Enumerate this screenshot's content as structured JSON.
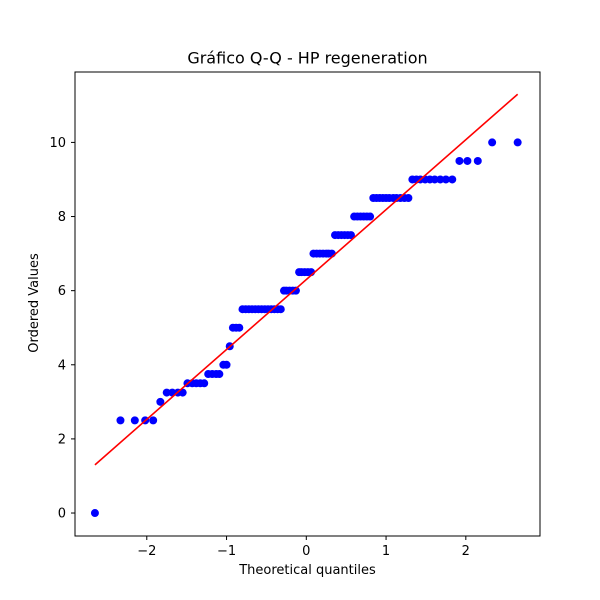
{
  "chart_data": {
    "type": "scatter",
    "title": "Gráfico Q-Q - HP regeneration",
    "xlabel": "Theoretical quantiles",
    "ylabel": "Ordered Values",
    "xlim": [
      -2.9,
      2.93
    ],
    "ylim": [
      -0.62,
      11.9
    ],
    "xticks": [
      -2,
      -1,
      0,
      1,
      2
    ],
    "xtick_labels": [
      "−2",
      "−1",
      "0",
      "1",
      "2"
    ],
    "yticks": [
      0,
      2,
      4,
      6,
      8,
      10
    ],
    "ytick_labels": [
      "0",
      "2",
      "4",
      "6",
      "8",
      "10"
    ],
    "grid": false,
    "series": [
      {
        "kind": "points",
        "color": "#0000ff",
        "marker": "circle",
        "x": [
          -2.65,
          -2.33,
          -2.15,
          -2.02,
          -1.92,
          -1.83,
          -1.75,
          -1.68,
          -1.61,
          -1.55,
          -1.49,
          -1.43,
          -1.38,
          -1.33,
          -1.28,
          -1.23,
          -1.18,
          -1.13,
          -1.09,
          -1.04,
          -1.0,
          -0.96,
          -0.92,
          -0.88,
          -0.84,
          -0.8,
          -0.76,
          -0.72,
          -0.68,
          -0.64,
          -0.6,
          -0.56,
          -0.52,
          -0.48,
          -0.44,
          -0.4,
          -0.36,
          -0.32,
          -0.28,
          -0.25,
          -0.21,
          -0.17,
          -0.13,
          -0.09,
          -0.06,
          -0.02,
          0.02,
          0.06,
          0.09,
          0.13,
          0.17,
          0.21,
          0.25,
          0.28,
          0.32,
          0.36,
          0.4,
          0.44,
          0.48,
          0.52,
          0.56,
          0.6,
          0.64,
          0.68,
          0.72,
          0.76,
          0.8,
          0.84,
          0.88,
          0.92,
          0.96,
          1.0,
          1.04,
          1.09,
          1.13,
          1.18,
          1.23,
          1.28,
          1.33,
          1.38,
          1.43,
          1.49,
          1.55,
          1.61,
          1.68,
          1.75,
          1.83,
          1.92,
          2.02,
          2.15,
          2.33,
          2.65
        ],
        "y": [
          0,
          2.5,
          2.5,
          2.5,
          2.5,
          3.0,
          3.25,
          3.25,
          3.25,
          3.25,
          3.5,
          3.5,
          3.5,
          3.5,
          3.5,
          3.75,
          3.75,
          3.75,
          3.75,
          4.0,
          4.0,
          4.5,
          5.0,
          5.0,
          5.0,
          5.5,
          5.5,
          5.5,
          5.5,
          5.5,
          5.5,
          5.5,
          5.5,
          5.5,
          5.5,
          5.5,
          5.5,
          5.5,
          6.0,
          6.0,
          6.0,
          6.0,
          6.0,
          6.5,
          6.5,
          6.5,
          6.5,
          6.5,
          7.0,
          7.0,
          7.0,
          7.0,
          7.0,
          7.0,
          7.0,
          7.5,
          7.5,
          7.5,
          7.5,
          7.5,
          7.5,
          8.0,
          8.0,
          8.0,
          8.0,
          8.0,
          8.0,
          8.5,
          8.5,
          8.5,
          8.5,
          8.5,
          8.5,
          8.5,
          8.5,
          8.5,
          8.5,
          8.5,
          9.0,
          9.0,
          9.0,
          9.0,
          9.0,
          9.0,
          9.0,
          9.0,
          9.0,
          9.5,
          9.5,
          9.5,
          10.0,
          10.0
        ]
      },
      {
        "kind": "fit-line",
        "color": "#ff0000",
        "x": [
          -2.65,
          2.65
        ],
        "y": [
          1.3,
          11.3
        ]
      }
    ]
  }
}
